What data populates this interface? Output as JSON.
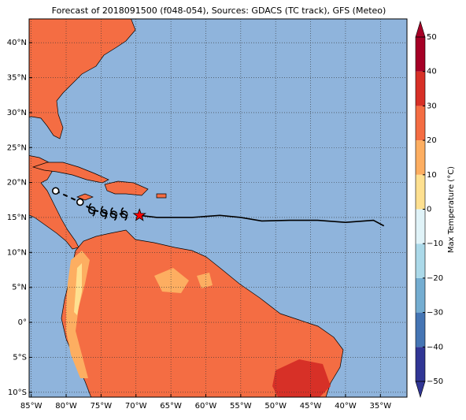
{
  "chart_data": {
    "type": "map",
    "title": "Forecast of 2018091500 (f048-054), Sources: GDACS (TC track), GFS (Meteo)",
    "xlim": [
      -85.3,
      -31.2
    ],
    "ylim": [
      -10.7,
      43.4
    ],
    "xticks": [
      {
        "value": -85,
        "label": "85°W"
      },
      {
        "value": -80,
        "label": "80°W"
      },
      {
        "value": -75,
        "label": "75°W"
      },
      {
        "value": -70,
        "label": "70°W"
      },
      {
        "value": -65,
        "label": "65°W"
      },
      {
        "value": -60,
        "label": "60°W"
      },
      {
        "value": -55,
        "label": "55°W"
      },
      {
        "value": -50,
        "label": "50°W"
      },
      {
        "value": -45,
        "label": "45°W"
      },
      {
        "value": -40,
        "label": "40°W"
      },
      {
        "value": -35,
        "label": "35°W"
      }
    ],
    "yticks": [
      {
        "value": -10,
        "label": "10°S"
      },
      {
        "value": -5,
        "label": "5°S"
      },
      {
        "value": 0,
        "label": "0°"
      },
      {
        "value": 5,
        "label": "5°N"
      },
      {
        "value": 10,
        "label": "10°N"
      },
      {
        "value": 15,
        "label": "15°N"
      },
      {
        "value": 20,
        "label": "20°N"
      },
      {
        "value": 25,
        "label": "25°N"
      },
      {
        "value": 30,
        "label": "30°N"
      },
      {
        "value": 35,
        "label": "35°N"
      },
      {
        "value": 40,
        "label": "40°N"
      }
    ],
    "grid": true,
    "colorbar": {
      "label": "Max Temperature (°C)",
      "lim": [
        -50,
        50
      ],
      "ticks": [
        {
          "value": -50,
          "label": "−50"
        },
        {
          "value": -40,
          "label": "−40"
        },
        {
          "value": -30,
          "label": "−30"
        },
        {
          "value": -20,
          "label": "−20"
        },
        {
          "value": -10,
          "label": "−10"
        },
        0,
        10,
        20,
        30,
        40,
        50
      ],
      "colors": [
        "#313695",
        "#4575b4",
        "#74add1",
        "#abd9e9",
        "#e0f3f8",
        "#fee090",
        "#fdae61",
        "#f46d43",
        "#d73027",
        "#a50026"
      ]
    },
    "track": {
      "lon": [
        -69.5,
        -67,
        -62,
        -58,
        -55,
        -52,
        -48,
        -44,
        -40,
        -36,
        -34.5
      ],
      "lat": [
        15.3,
        15.0,
        15.0,
        15.3,
        15.0,
        14.5,
        14.6,
        14.6,
        14.3,
        14.6,
        13.8
      ],
      "color": "#000000"
    },
    "forecast": {
      "lon": [
        -71.7,
        -73.2,
        -74.6,
        -76.3,
        -78.0,
        -81.5
      ],
      "lat": [
        15.5,
        15.5,
        15.7,
        16.1,
        17.2,
        18.8
      ]
    },
    "position": {
      "lon": [
        -69.5
      ],
      "lat": [
        15.3
      ],
      "color": "#ff0000"
    }
  }
}
